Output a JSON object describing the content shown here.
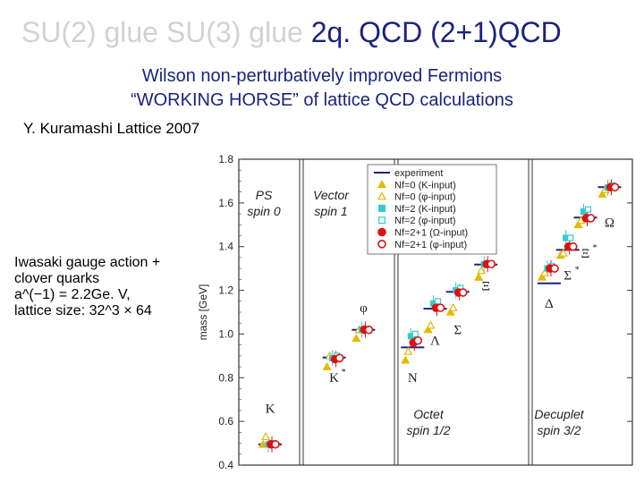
{
  "title": {
    "faded": "SU(2) glue SU(3) glue",
    "strong": "2q. QCD (2+1)QCD"
  },
  "subtitle1": "Wilson non-perturbatively improved Fermions",
  "subtitle2": "“WORKING HORSE” of lattice QCD calculations",
  "reference": "Y. Kuramashi Lattice 2007",
  "notes": [
    "Iwasaki gauge action +",
    "clover quarks",
    "a^(−1) = 2.2Ge. V,",
    "lattice size: 32^3 × 64"
  ],
  "chart_data": {
    "type": "scatter",
    "ylabel": "mass [GeV]",
    "ylim": [
      0.4,
      1.8
    ],
    "yticks": [
      0.4,
      0.6,
      0.8,
      1.0,
      1.2,
      1.4,
      1.6,
      1.8
    ],
    "panels": [
      {
        "line1": "PS",
        "line2": "spin 0"
      },
      {
        "line1": "Vector",
        "line2": "spin 1"
      },
      {
        "line1": "Octet",
        "line2": "spin 1/2"
      },
      {
        "line1": "Decuplet",
        "line2": "spin 3/2"
      }
    ],
    "series": [
      {
        "name": "experiment",
        "color": "#1a237e",
        "marker": "line"
      },
      {
        "name": "Nf=0 (K-input)",
        "color": "#e6b800",
        "marker": "triangle-filled"
      },
      {
        "name": "Nf=0 (φ-input)",
        "color": "#e6b800",
        "marker": "triangle-open"
      },
      {
        "name": "Nf=2 (K-input)",
        "color": "#33cccc",
        "marker": "square-filled"
      },
      {
        "name": "Nf=2 (φ-input)",
        "color": "#33cccc",
        "marker": "square-open"
      },
      {
        "name": "Nf=2+1 (Ω-input)",
        "color": "#dd1111",
        "marker": "circle-filled"
      },
      {
        "name": "Nf=2+1 (φ-input)",
        "color": "#dd1111",
        "marker": "circle-open"
      }
    ],
    "particles": [
      {
        "label": "K",
        "sup": "",
        "panel": 0,
        "pos": 0.5,
        "exp": 0.495,
        "nf0k": 0.495,
        "nf0p": 0.53,
        "nf2k": 0.495,
        "nf2p": 0.5,
        "nf21o": 0.495,
        "nf21p": 0.495,
        "label_y": 0.64
      },
      {
        "label": "K",
        "sup": "*",
        "panel": 1,
        "pos": 0.3,
        "exp": 0.892,
        "nf0k": 0.85,
        "nf0p": 0.9,
        "nf2k": 0.89,
        "nf2p": 0.9,
        "nf21o": 0.885,
        "nf21p": 0.89,
        "label_y": 0.78
      },
      {
        "label": "φ",
        "sup": "",
        "panel": 1,
        "pos": 0.7,
        "exp": 1.019,
        "nf0k": 0.98,
        "nf0p": 1.019,
        "nf2k": 1.02,
        "nf2p": 1.019,
        "nf21o": 1.02,
        "nf21p": 1.019,
        "label_y": 1.1
      },
      {
        "label": "N",
        "sup": "",
        "panel": 2,
        "pos": 0.05,
        "exp": 0.939,
        "nf0k": 0.88,
        "nf0p": 0.92,
        "nf2k": 0.99,
        "nf2p": 1.0,
        "nf21o": 0.96,
        "nf21p": 0.97,
        "label_y": 0.78
      },
      {
        "label": "Λ",
        "sup": "",
        "panel": 2,
        "pos": 0.25,
        "exp": 1.116,
        "nf0k": 1.02,
        "nf0p": 1.04,
        "nf2k": 1.14,
        "nf2p": 1.15,
        "nf21o": 1.12,
        "nf21p": 1.12,
        "label_y": 0.95
      },
      {
        "label": "Σ",
        "sup": "",
        "panel": 2,
        "pos": 0.45,
        "exp": 1.193,
        "nf0k": 1.1,
        "nf0p": 1.12,
        "nf2k": 1.2,
        "nf2p": 1.21,
        "nf21o": 1.19,
        "nf21p": 1.19,
        "label_y": 1.0
      },
      {
        "label": "Ξ",
        "sup": "",
        "panel": 2,
        "pos": 0.7,
        "exp": 1.318,
        "nf0k": 1.26,
        "nf0p": 1.29,
        "nf2k": 1.32,
        "nf2p": 1.32,
        "nf21o": 1.32,
        "nf21p": 1.32,
        "label_y": 1.2
      },
      {
        "label": "Δ",
        "sup": "",
        "panel": 3,
        "pos": 0.1,
        "exp": 1.232,
        "nf0k": 1.26,
        "nf0p": 1.28,
        "nf2k": 1.3,
        "nf2p": 1.31,
        "nf21o": 1.3,
        "nf21p": 1.3,
        "label_y": 1.12
      },
      {
        "label": "Σ",
        "sup": "*",
        "panel": 3,
        "pos": 0.33,
        "exp": 1.385,
        "nf0k": 1.36,
        "nf0p": 1.37,
        "nf2k": 1.44,
        "nf2p": 1.44,
        "nf21o": 1.4,
        "nf21p": 1.4,
        "label_y": 1.25
      },
      {
        "label": "Ξ",
        "sup": "*",
        "panel": 3,
        "pos": 0.55,
        "exp": 1.533,
        "nf0k": 1.5,
        "nf0p": 1.52,
        "nf2k": 1.56,
        "nf2p": 1.57,
        "nf21o": 1.53,
        "nf21p": 1.53,
        "label_y": 1.35
      },
      {
        "label": "Ω",
        "sup": "",
        "panel": 3,
        "pos": 0.85,
        "exp": 1.672,
        "nf0k": 1.64,
        "nf0p": 1.66,
        "nf2k": 1.67,
        "nf2p": 1.68,
        "nf21o": 1.672,
        "nf21p": 1.672,
        "label_y": 1.49
      }
    ]
  }
}
